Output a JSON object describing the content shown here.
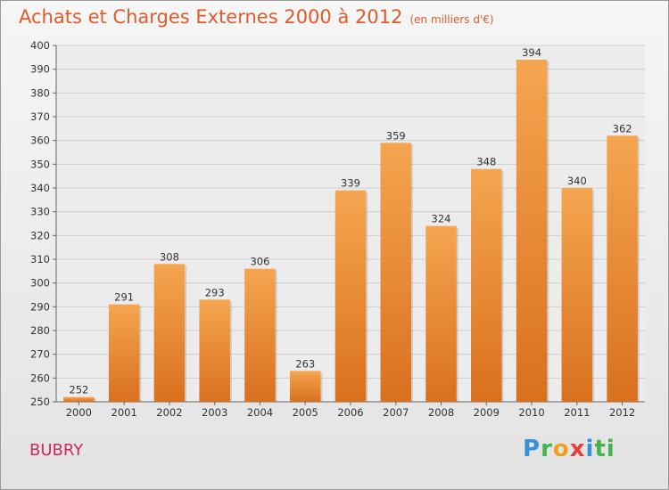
{
  "header": {
    "title": "Achats et Charges Externes 2000 à 2012",
    "unit": "(en milliers d'€)"
  },
  "footer": {
    "place": "BUBRY",
    "logo": [
      "P",
      "r",
      "o",
      "x",
      "i",
      "ti"
    ]
  },
  "colors": {
    "bar_light": "#f5a550",
    "bar_dark": "#d9701e",
    "title": "#e05a2a",
    "place": "#d02a5a",
    "grid": "#cfcfcf"
  },
  "chart_data": {
    "type": "bar",
    "title": "Achats et Charges Externes 2000 à 2012",
    "subtitle": "(en milliers d'€)",
    "xlabel": "",
    "ylabel": "",
    "categories": [
      "2000",
      "2001",
      "2002",
      "2003",
      "2004",
      "2005",
      "2006",
      "2007",
      "2008",
      "2009",
      "2010",
      "2011",
      "2012"
    ],
    "values": [
      252,
      291,
      308,
      293,
      306,
      263,
      339,
      359,
      324,
      348,
      394,
      340,
      362
    ],
    "ylim": [
      250,
      400
    ],
    "yticks": [
      250,
      260,
      270,
      280,
      290,
      300,
      310,
      320,
      330,
      340,
      350,
      360,
      370,
      380,
      390,
      400
    ],
    "grid": true,
    "legend": "none"
  }
}
